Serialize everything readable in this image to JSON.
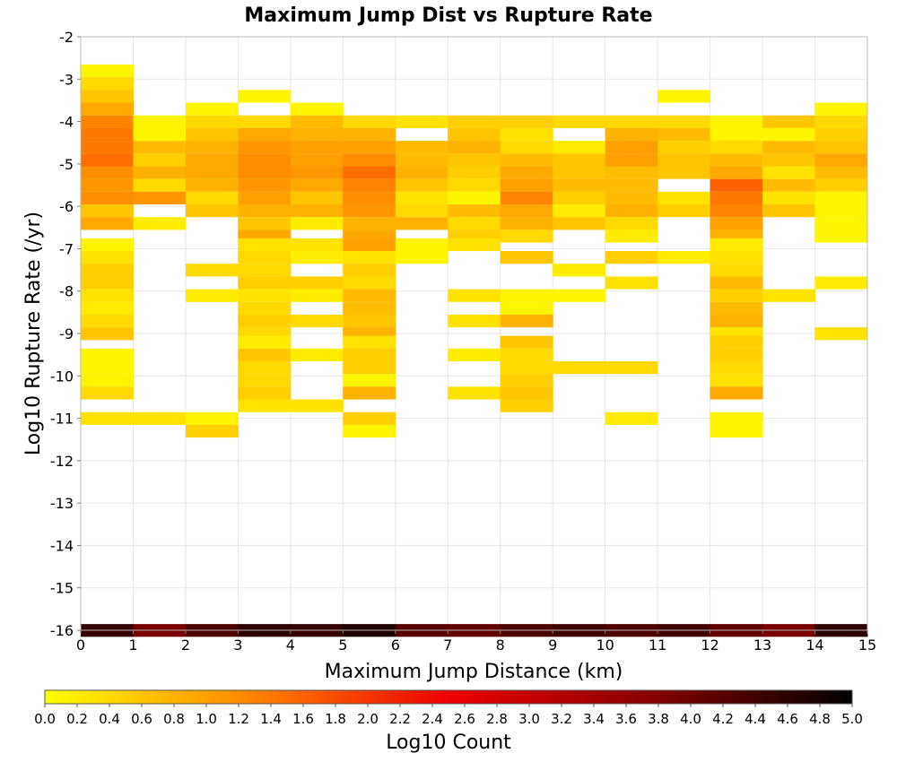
{
  "chart_data": {
    "type": "heatmap",
    "title": "Maximum Jump Dist vs Rupture Rate",
    "xlabel": "Maximum Jump Distance (km)",
    "ylabel": "Log10 Rupture Rate (/yr)",
    "xlim": [
      0,
      15
    ],
    "ylim": [
      -16,
      -2
    ],
    "x_ticks": [
      "0",
      "1",
      "2",
      "3",
      "4",
      "5",
      "6",
      "7",
      "8",
      "9",
      "10",
      "11",
      "12",
      "13",
      "14",
      "15"
    ],
    "y_ticks": [
      "-2",
      "-3",
      "-4",
      "-5",
      "-6",
      "-7",
      "-8",
      "-9",
      "-10",
      "-11",
      "-12",
      "-13",
      "-14",
      "-15",
      "-16"
    ],
    "grid": true,
    "x_bin_width": 1,
    "y_bin_height": 0.29,
    "colorbar": {
      "label": "Log10 Count",
      "range": [
        0,
        5
      ],
      "ticks": [
        "0.0",
        "0.2",
        "0.4",
        "0.6",
        "0.8",
        "1.0",
        "1.2",
        "1.4",
        "1.6",
        "1.8",
        "2.0",
        "2.2",
        "2.4",
        "2.6",
        "2.8",
        "3.0",
        "3.2",
        "3.4",
        "3.6",
        "3.8",
        "4.0",
        "4.2",
        "4.4",
        "4.6",
        "4.8",
        "5.0"
      ],
      "colors": [
        "#ffff00",
        "#ff8800",
        "#ee0000",
        "#880000",
        "#000000"
      ]
    },
    "cells": [
      {
        "x": 0,
        "y": -2.8,
        "v": 0.1
      },
      {
        "x": 0,
        "y": -3.1,
        "v": 0.4
      },
      {
        "x": 0,
        "y": -3.4,
        "v": 0.6
      },
      {
        "x": 0,
        "y": -3.7,
        "v": 0.9
      },
      {
        "x": 0,
        "y": -4.0,
        "v": 1.3
      },
      {
        "x": 0,
        "y": -4.3,
        "v": 1.4
      },
      {
        "x": 0,
        "y": -4.6,
        "v": 1.4
      },
      {
        "x": 0,
        "y": -4.9,
        "v": 1.5
      },
      {
        "x": 0,
        "y": -5.2,
        "v": 1.2
      },
      {
        "x": 0,
        "y": -5.5,
        "v": 1.1
      },
      {
        "x": 0,
        "y": -5.8,
        "v": 1.2
      },
      {
        "x": 0,
        "y": -6.1,
        "v": 0.6
      },
      {
        "x": 0,
        "y": -6.4,
        "v": 0.9
      },
      {
        "x": 0,
        "y": -6.9,
        "v": 0.1
      },
      {
        "x": 0,
        "y": -7.2,
        "v": 0.3
      },
      {
        "x": 0,
        "y": -7.5,
        "v": 0.5
      },
      {
        "x": 0,
        "y": -7.8,
        "v": 0.5
      },
      {
        "x": 0,
        "y": -8.1,
        "v": 0.3
      },
      {
        "x": 0,
        "y": -8.4,
        "v": 0.2
      },
      {
        "x": 0,
        "y": -8.7,
        "v": 0.4
      },
      {
        "x": 0,
        "y": -9.0,
        "v": 0.6
      },
      {
        "x": 0,
        "y": -9.5,
        "v": 0.1
      },
      {
        "x": 0,
        "y": -9.8,
        "v": 0.1
      },
      {
        "x": 0,
        "y": -10.1,
        "v": 0.1
      },
      {
        "x": 0,
        "y": -10.4,
        "v": 0.4
      },
      {
        "x": 0,
        "y": -11.0,
        "v": 0.3
      },
      {
        "x": 0,
        "y": -16.0,
        "v": 4.5
      },
      {
        "x": 1,
        "y": -4.0,
        "v": 0.1
      },
      {
        "x": 1,
        "y": -4.3,
        "v": 0.1
      },
      {
        "x": 1,
        "y": -4.6,
        "v": 0.7
      },
      {
        "x": 1,
        "y": -4.9,
        "v": 0.5
      },
      {
        "x": 1,
        "y": -5.2,
        "v": 0.8
      },
      {
        "x": 1,
        "y": -5.5,
        "v": 0.4
      },
      {
        "x": 1,
        "y": -5.8,
        "v": 1.1
      },
      {
        "x": 1,
        "y": -6.4,
        "v": 0.2
      },
      {
        "x": 1,
        "y": -11.0,
        "v": 0.3
      },
      {
        "x": 1,
        "y": -16.0,
        "v": 3.9
      },
      {
        "x": 2,
        "y": -3.7,
        "v": 0.1
      },
      {
        "x": 2,
        "y": -4.0,
        "v": 0.4
      },
      {
        "x": 2,
        "y": -4.3,
        "v": 0.6
      },
      {
        "x": 2,
        "y": -4.6,
        "v": 0.8
      },
      {
        "x": 2,
        "y": -4.9,
        "v": 0.9
      },
      {
        "x": 2,
        "y": -5.2,
        "v": 0.9
      },
      {
        "x": 2,
        "y": -5.5,
        "v": 0.8
      },
      {
        "x": 2,
        "y": -5.8,
        "v": 0.4
      },
      {
        "x": 2,
        "y": -6.1,
        "v": 0.6
      },
      {
        "x": 2,
        "y": -7.5,
        "v": 0.4
      },
      {
        "x": 2,
        "y": -8.1,
        "v": 0.2
      },
      {
        "x": 2,
        "y": -11.0,
        "v": 0.1
      },
      {
        "x": 2,
        "y": -11.3,
        "v": 0.5
      },
      {
        "x": 2,
        "y": -16.0,
        "v": 4.3
      },
      {
        "x": 3,
        "y": -3.4,
        "v": 0.1
      },
      {
        "x": 3,
        "y": -4.0,
        "v": 0.4
      },
      {
        "x": 3,
        "y": -4.3,
        "v": 0.9
      },
      {
        "x": 3,
        "y": -4.6,
        "v": 1.1
      },
      {
        "x": 3,
        "y": -4.9,
        "v": 1.2
      },
      {
        "x": 3,
        "y": -5.2,
        "v": 1.2
      },
      {
        "x": 3,
        "y": -5.5,
        "v": 1.1
      },
      {
        "x": 3,
        "y": -5.8,
        "v": 1.0
      },
      {
        "x": 3,
        "y": -6.1,
        "v": 0.8
      },
      {
        "x": 3,
        "y": -6.4,
        "v": 0.6
      },
      {
        "x": 3,
        "y": -6.7,
        "v": 0.9
      },
      {
        "x": 3,
        "y": -6.9,
        "v": 0.3
      },
      {
        "x": 3,
        "y": -7.2,
        "v": 0.4
      },
      {
        "x": 3,
        "y": -7.5,
        "v": 0.4
      },
      {
        "x": 3,
        "y": -7.8,
        "v": 0.5
      },
      {
        "x": 3,
        "y": -8.1,
        "v": 0.3
      },
      {
        "x": 3,
        "y": -8.4,
        "v": 0.4
      },
      {
        "x": 3,
        "y": -8.7,
        "v": 0.5
      },
      {
        "x": 3,
        "y": -9.0,
        "v": 0.4
      },
      {
        "x": 3,
        "y": -9.2,
        "v": 0.2
      },
      {
        "x": 3,
        "y": -9.5,
        "v": 0.6
      },
      {
        "x": 3,
        "y": -9.8,
        "v": 0.4
      },
      {
        "x": 3,
        "y": -10.1,
        "v": 0.4
      },
      {
        "x": 3,
        "y": -10.4,
        "v": 0.5
      },
      {
        "x": 3,
        "y": -10.7,
        "v": 0.3
      },
      {
        "x": 3,
        "y": -16.0,
        "v": 4.6
      },
      {
        "x": 4,
        "y": -3.7,
        "v": 0.1
      },
      {
        "x": 4,
        "y": -4.0,
        "v": 0.7
      },
      {
        "x": 4,
        "y": -4.3,
        "v": 0.8
      },
      {
        "x": 4,
        "y": -4.6,
        "v": 1.0
      },
      {
        "x": 4,
        "y": -4.9,
        "v": 1.0
      },
      {
        "x": 4,
        "y": -5.2,
        "v": 1.1
      },
      {
        "x": 4,
        "y": -5.5,
        "v": 0.9
      },
      {
        "x": 4,
        "y": -5.8,
        "v": 0.6
      },
      {
        "x": 4,
        "y": -6.1,
        "v": 0.8
      },
      {
        "x": 4,
        "y": -6.4,
        "v": 0.2
      },
      {
        "x": 4,
        "y": -6.9,
        "v": 0.3
      },
      {
        "x": 4,
        "y": -7.2,
        "v": 0.2
      },
      {
        "x": 4,
        "y": -7.8,
        "v": 0.5
      },
      {
        "x": 4,
        "y": -8.1,
        "v": 0.2
      },
      {
        "x": 4,
        "y": -8.7,
        "v": 0.4
      },
      {
        "x": 4,
        "y": -9.5,
        "v": 0.2
      },
      {
        "x": 4,
        "y": -10.7,
        "v": 0.3
      },
      {
        "x": 4,
        "y": -16.0,
        "v": 4.5
      },
      {
        "x": 5,
        "y": -4.0,
        "v": 0.4
      },
      {
        "x": 5,
        "y": -4.3,
        "v": 0.8
      },
      {
        "x": 5,
        "y": -4.6,
        "v": 1.0
      },
      {
        "x": 5,
        "y": -4.9,
        "v": 1.2
      },
      {
        "x": 5,
        "y": -5.2,
        "v": 1.5
      },
      {
        "x": 5,
        "y": -5.5,
        "v": 1.3
      },
      {
        "x": 5,
        "y": -5.8,
        "v": 1.2
      },
      {
        "x": 5,
        "y": -6.1,
        "v": 1.1
      },
      {
        "x": 5,
        "y": -6.4,
        "v": 0.8
      },
      {
        "x": 5,
        "y": -6.7,
        "v": 0.9
      },
      {
        "x": 5,
        "y": -6.9,
        "v": 1.0
      },
      {
        "x": 5,
        "y": -7.2,
        "v": 0.3
      },
      {
        "x": 5,
        "y": -7.5,
        "v": 0.5
      },
      {
        "x": 5,
        "y": -7.8,
        "v": 0.4
      },
      {
        "x": 5,
        "y": -8.1,
        "v": 0.7
      },
      {
        "x": 5,
        "y": -8.4,
        "v": 0.7
      },
      {
        "x": 5,
        "y": -8.7,
        "v": 0.6
      },
      {
        "x": 5,
        "y": -9.0,
        "v": 0.8
      },
      {
        "x": 5,
        "y": -9.2,
        "v": 0.3
      },
      {
        "x": 5,
        "y": -9.5,
        "v": 0.5
      },
      {
        "x": 5,
        "y": -9.8,
        "v": 0.5
      },
      {
        "x": 5,
        "y": -10.1,
        "v": 0.1
      },
      {
        "x": 5,
        "y": -10.4,
        "v": 0.8
      },
      {
        "x": 5,
        "y": -11.0,
        "v": 0.5
      },
      {
        "x": 5,
        "y": -11.3,
        "v": 0.1
      },
      {
        "x": 5,
        "y": -16.0,
        "v": 4.7
      },
      {
        "x": 6,
        "y": -4.0,
        "v": 0.3
      },
      {
        "x": 6,
        "y": -4.6,
        "v": 0.7
      },
      {
        "x": 6,
        "y": -4.9,
        "v": 0.7
      },
      {
        "x": 6,
        "y": -5.2,
        "v": 0.8
      },
      {
        "x": 6,
        "y": -5.5,
        "v": 0.6
      },
      {
        "x": 6,
        "y": -5.8,
        "v": 0.3
      },
      {
        "x": 6,
        "y": -6.1,
        "v": 0.4
      },
      {
        "x": 6,
        "y": -6.4,
        "v": 0.8
      },
      {
        "x": 6,
        "y": -6.9,
        "v": 0.1
      },
      {
        "x": 6,
        "y": -7.2,
        "v": 0.1
      },
      {
        "x": 6,
        "y": -16.0,
        "v": 4.2
      },
      {
        "x": 7,
        "y": -4.0,
        "v": 0.5
      },
      {
        "x": 7,
        "y": -4.3,
        "v": 0.6
      },
      {
        "x": 7,
        "y": -4.6,
        "v": 0.8
      },
      {
        "x": 7,
        "y": -4.9,
        "v": 0.6
      },
      {
        "x": 7,
        "y": -5.2,
        "v": 0.5
      },
      {
        "x": 7,
        "y": -5.5,
        "v": 0.4
      },
      {
        "x": 7,
        "y": -5.8,
        "v": 0.1
      },
      {
        "x": 7,
        "y": -6.1,
        "v": 0.7
      },
      {
        "x": 7,
        "y": -6.4,
        "v": 0.4
      },
      {
        "x": 7,
        "y": -6.7,
        "v": 0.5
      },
      {
        "x": 7,
        "y": -6.9,
        "v": 0.3
      },
      {
        "x": 7,
        "y": -8.1,
        "v": 0.3
      },
      {
        "x": 7,
        "y": -8.7,
        "v": 0.3
      },
      {
        "x": 7,
        "y": -9.5,
        "v": 0.2
      },
      {
        "x": 7,
        "y": -10.4,
        "v": 0.3
      },
      {
        "x": 7,
        "y": -16.0,
        "v": 4.1
      },
      {
        "x": 8,
        "y": -4.0,
        "v": 0.5
      },
      {
        "x": 8,
        "y": -4.3,
        "v": 0.3
      },
      {
        "x": 8,
        "y": -4.6,
        "v": 0.4
      },
      {
        "x": 8,
        "y": -4.9,
        "v": 0.7
      },
      {
        "x": 8,
        "y": -5.2,
        "v": 0.9
      },
      {
        "x": 8,
        "y": -5.5,
        "v": 1.0
      },
      {
        "x": 8,
        "y": -5.8,
        "v": 1.3
      },
      {
        "x": 8,
        "y": -6.1,
        "v": 0.9
      },
      {
        "x": 8,
        "y": -6.4,
        "v": 0.8
      },
      {
        "x": 8,
        "y": -6.7,
        "v": 0.4
      },
      {
        "x": 8,
        "y": -7.2,
        "v": 0.6
      },
      {
        "x": 8,
        "y": -8.1,
        "v": 0.1
      },
      {
        "x": 8,
        "y": -8.4,
        "v": 0.1
      },
      {
        "x": 8,
        "y": -8.7,
        "v": 0.8
      },
      {
        "x": 8,
        "y": -9.2,
        "v": 0.6
      },
      {
        "x": 8,
        "y": -9.5,
        "v": 0.4
      },
      {
        "x": 8,
        "y": -9.8,
        "v": 0.4
      },
      {
        "x": 8,
        "y": -10.1,
        "v": 0.5
      },
      {
        "x": 8,
        "y": -10.4,
        "v": 0.6
      },
      {
        "x": 8,
        "y": -10.7,
        "v": 0.5
      },
      {
        "x": 8,
        "y": -16.0,
        "v": 4.3
      },
      {
        "x": 9,
        "y": -4.0,
        "v": 0.4
      },
      {
        "x": 9,
        "y": -4.6,
        "v": 0.2
      },
      {
        "x": 9,
        "y": -4.9,
        "v": 0.6
      },
      {
        "x": 9,
        "y": -5.2,
        "v": 0.6
      },
      {
        "x": 9,
        "y": -5.5,
        "v": 0.7
      },
      {
        "x": 9,
        "y": -5.8,
        "v": 0.5
      },
      {
        "x": 9,
        "y": -6.1,
        "v": 0.2
      },
      {
        "x": 9,
        "y": -6.4,
        "v": 0.6
      },
      {
        "x": 9,
        "y": -7.5,
        "v": 0.2
      },
      {
        "x": 9,
        "y": -8.1,
        "v": 0.1
      },
      {
        "x": 9,
        "y": -9.8,
        "v": 0.4
      },
      {
        "x": 9,
        "y": -16.0,
        "v": 4.4
      },
      {
        "x": 10,
        "y": -4.0,
        "v": 0.4
      },
      {
        "x": 10,
        "y": -4.3,
        "v": 0.8
      },
      {
        "x": 10,
        "y": -4.6,
        "v": 1.0
      },
      {
        "x": 10,
        "y": -4.9,
        "v": 1.0
      },
      {
        "x": 10,
        "y": -5.2,
        "v": 0.7
      },
      {
        "x": 10,
        "y": -5.5,
        "v": 0.7
      },
      {
        "x": 10,
        "y": -5.8,
        "v": 0.7
      },
      {
        "x": 10,
        "y": -6.1,
        "v": 0.8
      },
      {
        "x": 10,
        "y": -6.4,
        "v": 0.4
      },
      {
        "x": 10,
        "y": -6.7,
        "v": 0.2
      },
      {
        "x": 10,
        "y": -7.2,
        "v": 0.5
      },
      {
        "x": 10,
        "y": -7.8,
        "v": 0.3
      },
      {
        "x": 10,
        "y": -9.8,
        "v": 0.4
      },
      {
        "x": 10,
        "y": -11.0,
        "v": 0.2
      },
      {
        "x": 10,
        "y": -16.0,
        "v": 4.3
      },
      {
        "x": 11,
        "y": -3.4,
        "v": 0.1
      },
      {
        "x": 11,
        "y": -4.0,
        "v": 0.4
      },
      {
        "x": 11,
        "y": -4.3,
        "v": 0.7
      },
      {
        "x": 11,
        "y": -4.6,
        "v": 0.5
      },
      {
        "x": 11,
        "y": -4.9,
        "v": 0.6
      },
      {
        "x": 11,
        "y": -5.2,
        "v": 0.6
      },
      {
        "x": 11,
        "y": -5.8,
        "v": 0.3
      },
      {
        "x": 11,
        "y": -6.1,
        "v": 0.5
      },
      {
        "x": 11,
        "y": -7.2,
        "v": 0.2
      },
      {
        "x": 11,
        "y": -16.0,
        "v": 4.4
      },
      {
        "x": 12,
        "y": -4.0,
        "v": 0.1
      },
      {
        "x": 12,
        "y": -4.3,
        "v": 0.1
      },
      {
        "x": 12,
        "y": -4.6,
        "v": 0.4
      },
      {
        "x": 12,
        "y": -4.9,
        "v": 0.7
      },
      {
        "x": 12,
        "y": -5.2,
        "v": 0.9
      },
      {
        "x": 12,
        "y": -5.5,
        "v": 1.6
      },
      {
        "x": 12,
        "y": -5.8,
        "v": 1.4
      },
      {
        "x": 12,
        "y": -6.1,
        "v": 1.3
      },
      {
        "x": 12,
        "y": -6.4,
        "v": 1.0
      },
      {
        "x": 12,
        "y": -6.7,
        "v": 0.8
      },
      {
        "x": 12,
        "y": -6.9,
        "v": 0.2
      },
      {
        "x": 12,
        "y": -7.2,
        "v": 0.3
      },
      {
        "x": 12,
        "y": -7.5,
        "v": 0.4
      },
      {
        "x": 12,
        "y": -7.8,
        "v": 0.7
      },
      {
        "x": 12,
        "y": -8.1,
        "v": 0.5
      },
      {
        "x": 12,
        "y": -8.4,
        "v": 0.7
      },
      {
        "x": 12,
        "y": -8.7,
        "v": 0.8
      },
      {
        "x": 12,
        "y": -9.0,
        "v": 0.3
      },
      {
        "x": 12,
        "y": -9.2,
        "v": 0.5
      },
      {
        "x": 12,
        "y": -9.5,
        "v": 0.5
      },
      {
        "x": 12,
        "y": -9.8,
        "v": 0.4
      },
      {
        "x": 12,
        "y": -10.1,
        "v": 0.3
      },
      {
        "x": 12,
        "y": -10.4,
        "v": 0.9
      },
      {
        "x": 12,
        "y": -11.0,
        "v": 0.1
      },
      {
        "x": 12,
        "y": -11.3,
        "v": 0.1
      },
      {
        "x": 12,
        "y": -16.0,
        "v": 4.1
      },
      {
        "x": 13,
        "y": -4.0,
        "v": 0.6
      },
      {
        "x": 13,
        "y": -4.3,
        "v": 0.1
      },
      {
        "x": 13,
        "y": -4.6,
        "v": 0.7
      },
      {
        "x": 13,
        "y": -4.9,
        "v": 0.6
      },
      {
        "x": 13,
        "y": -5.2,
        "v": 0.3
      },
      {
        "x": 13,
        "y": -5.5,
        "v": 0.7
      },
      {
        "x": 13,
        "y": -5.8,
        "v": 0.3
      },
      {
        "x": 13,
        "y": -6.1,
        "v": 0.6
      },
      {
        "x": 13,
        "y": -8.1,
        "v": 0.3
      },
      {
        "x": 13,
        "y": -16.0,
        "v": 3.9
      },
      {
        "x": 14,
        "y": -3.7,
        "v": 0.1
      },
      {
        "x": 14,
        "y": -4.0,
        "v": 0.4
      },
      {
        "x": 14,
        "y": -4.3,
        "v": 0.5
      },
      {
        "x": 14,
        "y": -4.6,
        "v": 0.6
      },
      {
        "x": 14,
        "y": -4.9,
        "v": 0.9
      },
      {
        "x": 14,
        "y": -5.2,
        "v": 0.7
      },
      {
        "x": 14,
        "y": -5.5,
        "v": 0.5
      },
      {
        "x": 14,
        "y": -5.8,
        "v": 0.1
      },
      {
        "x": 14,
        "y": -6.1,
        "v": 0.1
      },
      {
        "x": 14,
        "y": -6.4,
        "v": 0.1
      },
      {
        "x": 14,
        "y": -6.7,
        "v": 0.1
      },
      {
        "x": 14,
        "y": -7.8,
        "v": 0.2
      },
      {
        "x": 14,
        "y": -9.0,
        "v": 0.3
      },
      {
        "x": 14,
        "y": -16.0,
        "v": 4.6
      }
    ]
  }
}
